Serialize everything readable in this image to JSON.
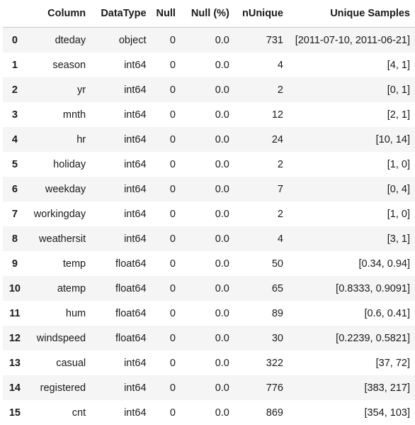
{
  "table": {
    "headers": {
      "index": "",
      "column": "Column",
      "datatype": "DataType",
      "null": "Null",
      "null_pct": "Null (%)",
      "nunique": "nUnique",
      "unique_samples": "Unique Samples"
    },
    "rows": [
      {
        "index": "0",
        "column": "dteday",
        "datatype": "object",
        "null": "0",
        "null_pct": "0.0",
        "nunique": "731",
        "unique_samples": "[2011-07-10, 2011-06-21]"
      },
      {
        "index": "1",
        "column": "season",
        "datatype": "int64",
        "null": "0",
        "null_pct": "0.0",
        "nunique": "4",
        "unique_samples": "[4, 1]"
      },
      {
        "index": "2",
        "column": "yr",
        "datatype": "int64",
        "null": "0",
        "null_pct": "0.0",
        "nunique": "2",
        "unique_samples": "[0, 1]"
      },
      {
        "index": "3",
        "column": "mnth",
        "datatype": "int64",
        "null": "0",
        "null_pct": "0.0",
        "nunique": "12",
        "unique_samples": "[2, 1]"
      },
      {
        "index": "4",
        "column": "hr",
        "datatype": "int64",
        "null": "0",
        "null_pct": "0.0",
        "nunique": "24",
        "unique_samples": "[10, 14]"
      },
      {
        "index": "5",
        "column": "holiday",
        "datatype": "int64",
        "null": "0",
        "null_pct": "0.0",
        "nunique": "2",
        "unique_samples": "[1, 0]"
      },
      {
        "index": "6",
        "column": "weekday",
        "datatype": "int64",
        "null": "0",
        "null_pct": "0.0",
        "nunique": "7",
        "unique_samples": "[0, 4]"
      },
      {
        "index": "7",
        "column": "workingday",
        "datatype": "int64",
        "null": "0",
        "null_pct": "0.0",
        "nunique": "2",
        "unique_samples": "[1, 0]"
      },
      {
        "index": "8",
        "column": "weathersit",
        "datatype": "int64",
        "null": "0",
        "null_pct": "0.0",
        "nunique": "4",
        "unique_samples": "[3, 1]"
      },
      {
        "index": "9",
        "column": "temp",
        "datatype": "float64",
        "null": "0",
        "null_pct": "0.0",
        "nunique": "50",
        "unique_samples": "[0.34, 0.94]"
      },
      {
        "index": "10",
        "column": "atemp",
        "datatype": "float64",
        "null": "0",
        "null_pct": "0.0",
        "nunique": "65",
        "unique_samples": "[0.8333, 0.9091]"
      },
      {
        "index": "11",
        "column": "hum",
        "datatype": "float64",
        "null": "0",
        "null_pct": "0.0",
        "nunique": "89",
        "unique_samples": "[0.6, 0.41]"
      },
      {
        "index": "12",
        "column": "windspeed",
        "datatype": "float64",
        "null": "0",
        "null_pct": "0.0",
        "nunique": "30",
        "unique_samples": "[0.2239, 0.5821]"
      },
      {
        "index": "13",
        "column": "casual",
        "datatype": "int64",
        "null": "0",
        "null_pct": "0.0",
        "nunique": "322",
        "unique_samples": "[37, 72]"
      },
      {
        "index": "14",
        "column": "registered",
        "datatype": "int64",
        "null": "0",
        "null_pct": "0.0",
        "nunique": "776",
        "unique_samples": "[383, 217]"
      },
      {
        "index": "15",
        "column": "cnt",
        "datatype": "int64",
        "null": "0",
        "null_pct": "0.0",
        "nunique": "869",
        "unique_samples": "[354, 103]"
      }
    ]
  }
}
